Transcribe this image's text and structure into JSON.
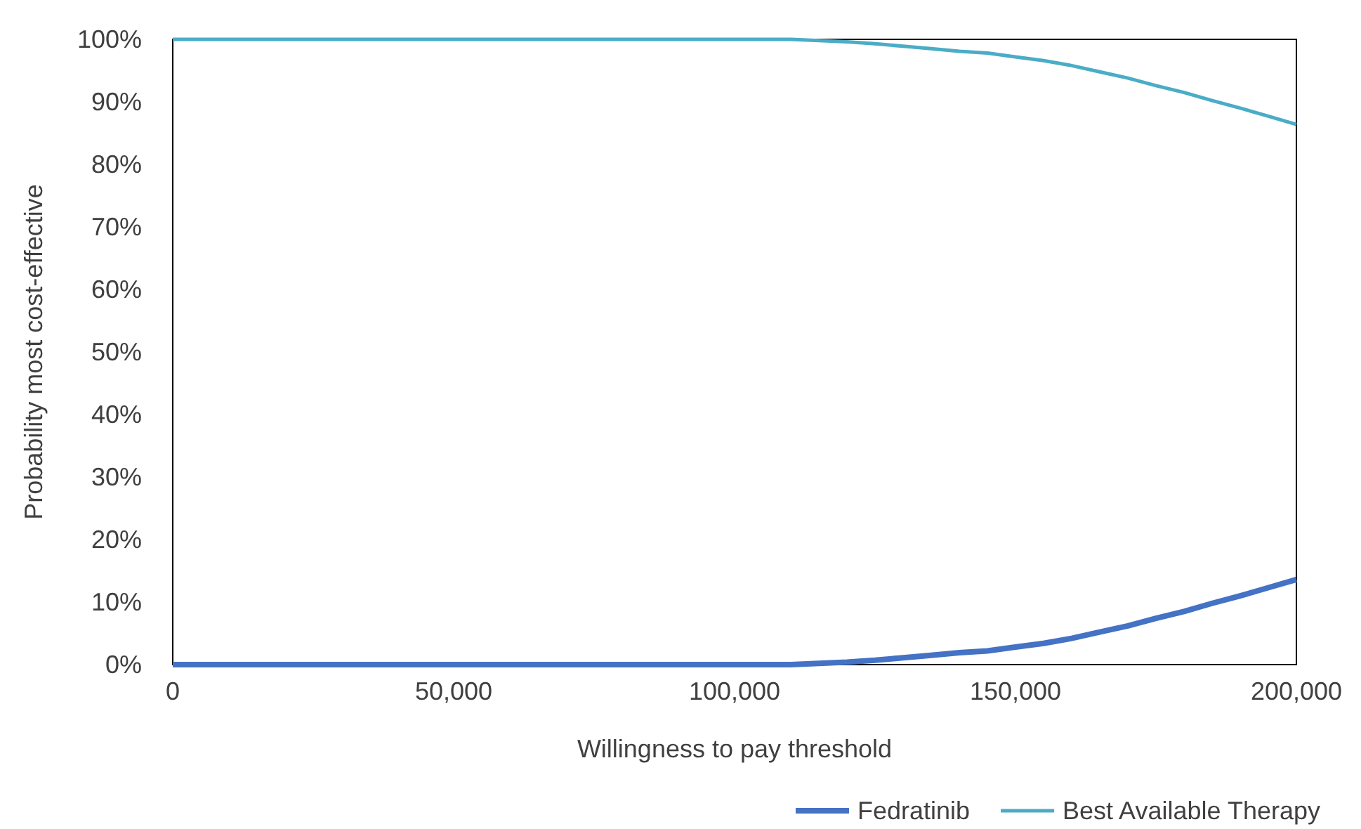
{
  "chart_data": {
    "type": "line",
    "xlabel": "Willingness to pay threshold",
    "ylabel": "Probability  most cost-effective",
    "x": [
      0,
      110000,
      115000,
      120000,
      125000,
      130000,
      135000,
      140000,
      145000,
      150000,
      155000,
      160000,
      165000,
      170000,
      175000,
      180000,
      185000,
      190000,
      195000,
      200000
    ],
    "series": [
      {
        "name": "Fedratinib",
        "color": "#4472c4",
        "values": [
          0,
          0,
          0.2,
          0.4,
          0.7,
          1.1,
          1.5,
          1.9,
          2.2,
          2.8,
          3.4,
          4.2,
          5.2,
          6.2,
          7.4,
          8.5,
          9.8,
          11.0,
          12.3,
          13.6
        ]
      },
      {
        "name": "Best Available Therapy",
        "color": "#4bacc6",
        "values": [
          100,
          100,
          99.8,
          99.6,
          99.3,
          98.9,
          98.5,
          98.1,
          97.8,
          97.2,
          96.6,
          95.8,
          94.8,
          93.8,
          92.6,
          91.5,
          90.2,
          89.0,
          87.7,
          86.4
        ]
      }
    ],
    "xlim": [
      0,
      200000
    ],
    "xticks": [
      {
        "value": 0,
        "label": "0"
      },
      {
        "value": 50000,
        "label": "50,000"
      },
      {
        "value": 100000,
        "label": "100,000"
      },
      {
        "value": 150000,
        "label": "150,000"
      },
      {
        "value": 200000,
        "label": "200,000"
      }
    ],
    "ylim": [
      0,
      100
    ],
    "yticks": [
      {
        "value": 0,
        "label": "0%"
      },
      {
        "value": 10,
        "label": "10%"
      },
      {
        "value": 20,
        "label": "20%"
      },
      {
        "value": 30,
        "label": "30%"
      },
      {
        "value": 40,
        "label": "40%"
      },
      {
        "value": 50,
        "label": "50%"
      },
      {
        "value": 60,
        "label": "60%"
      },
      {
        "value": 70,
        "label": "70%"
      },
      {
        "value": 80,
        "label": "80%"
      },
      {
        "value": 90,
        "label": "90%"
      },
      {
        "value": 100,
        "label": "100%"
      }
    ],
    "grid": false,
    "legend": "bottom right",
    "marker": "none",
    "line_style": "solid"
  }
}
